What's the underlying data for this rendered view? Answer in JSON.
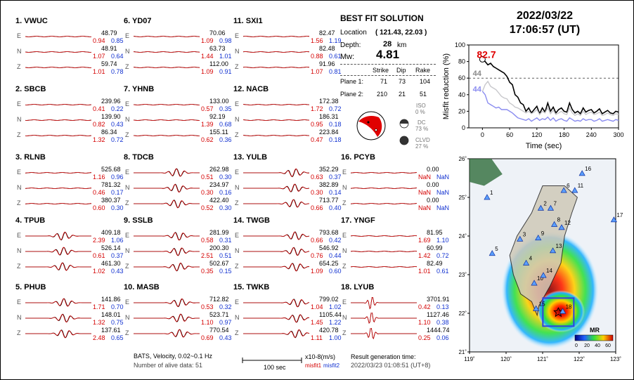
{
  "stations": [
    {
      "label": "1. VWUC",
      "col": 0,
      "row": 0,
      "type": "flat",
      "c": [
        [
          "E",
          "48.79",
          "0.94",
          "0.85"
        ],
        [
          "N",
          "48.91",
          "1.07",
          "0.64"
        ],
        [
          "Z",
          "59.74",
          "1.01",
          "0.78"
        ]
      ]
    },
    {
      "label": "2. SBCB",
      "col": 0,
      "row": 1,
      "type": "flat",
      "c": [
        [
          "E",
          "239.96",
          "0.41",
          "0.22"
        ],
        [
          "N",
          "139.90",
          "0.82",
          "0.43"
        ],
        [
          "Z",
          "86.34",
          "1.32",
          "0.72"
        ]
      ]
    },
    {
      "label": "3. RLNB",
      "col": 0,
      "row": 2,
      "type": "flat",
      "c": [
        [
          "E",
          "525.68",
          "1.16",
          "0.96"
        ],
        [
          "N",
          "781.32",
          "0.46",
          "0.17"
        ],
        [
          "Z",
          "380.37",
          "0.60",
          "0.30"
        ]
      ]
    },
    {
      "label": "4. TPUB",
      "col": 0,
      "row": 3,
      "type": "wave",
      "c": [
        [
          "E",
          "409.18",
          "2.39",
          "1.06"
        ],
        [
          "N",
          "526.14",
          "0.61",
          "0.37"
        ],
        [
          "Z",
          "461.30",
          "1.02",
          "0.43"
        ]
      ]
    },
    {
      "label": "5. PHUB",
      "col": 0,
      "row": 4,
      "type": "wave",
      "c": [
        [
          "E",
          "141.86",
          "1.71",
          "0.70"
        ],
        [
          "N",
          "148.01",
          "1.32",
          "0.75"
        ],
        [
          "Z",
          "137.61",
          "2.48",
          "0.65"
        ]
      ]
    },
    {
      "label": "6. YD07",
      "col": 1,
      "row": 0,
      "type": "flat",
      "c": [
        [
          "E",
          "70.06",
          "1.09",
          "0.98"
        ],
        [
          "N",
          "63.73",
          "1.44",
          "1.01"
        ],
        [
          "Z",
          "112.00",
          "1.09",
          "0.91"
        ]
      ]
    },
    {
      "label": "7. YHNB",
      "col": 1,
      "row": 1,
      "type": "flat",
      "c": [
        [
          "E",
          "133.00",
          "0.57",
          "0.35"
        ],
        [
          "N",
          "92.19",
          "1.39",
          "0.68"
        ],
        [
          "Z",
          "155.11",
          "0.62",
          "0.36"
        ]
      ]
    },
    {
      "label": "8. TDCB",
      "col": 1,
      "row": 2,
      "type": "wave",
      "c": [
        [
          "E",
          "262.98",
          "0.51",
          "0.30"
        ],
        [
          "N",
          "234.97",
          "0.30",
          "0.16"
        ],
        [
          "Z",
          "422.40",
          "0.52",
          "0.30"
        ]
      ]
    },
    {
      "label": "9. SSLB",
      "col": 1,
      "row": 3,
      "type": "wave",
      "c": [
        [
          "E",
          "281.99",
          "0.58",
          "0.31"
        ],
        [
          "N",
          "200.30",
          "2.51",
          "0.51"
        ],
        [
          "Z",
          "502.67",
          "0.35",
          "0.15"
        ]
      ]
    },
    {
      "label": "10. MASB",
      "col": 1,
      "row": 4,
      "type": "wave",
      "c": [
        [
          "E",
          "712.82",
          "0.53",
          "0.32"
        ],
        [
          "N",
          "523.71",
          "1.10",
          "0.97"
        ],
        [
          "Z",
          "770.54",
          "0.69",
          "0.43"
        ]
      ]
    },
    {
      "label": "11. SXI1",
      "col": 2,
      "row": 0,
      "type": "flat",
      "c": [
        [
          "E",
          "82.47",
          "1.56",
          "1.19"
        ],
        [
          "N",
          "82.48",
          "0.88",
          "0.61"
        ],
        [
          "Z",
          "91.96",
          "1.07",
          "0.81"
        ]
      ]
    },
    {
      "label": "12. NACB",
      "col": 2,
      "row": 1,
      "type": "flat",
      "c": [
        [
          "E",
          "172.38",
          "1.72",
          "0.72"
        ],
        [
          "N",
          "186.31",
          "0.95",
          "0.18"
        ],
        [
          "Z",
          "223.84",
          "0.47",
          "0.18"
        ]
      ]
    },
    {
      "label": "13. YULB",
      "col": 2,
      "row": 2,
      "type": "wave",
      "c": [
        [
          "E",
          "352.29",
          "0.63",
          "0.37"
        ],
        [
          "N",
          "382.89",
          "0.30",
          "0.14"
        ],
        [
          "Z",
          "713.77",
          "0.66",
          "0.40"
        ]
      ]
    },
    {
      "label": "14. TWGB",
      "col": 2,
      "row": 3,
      "type": "wave",
      "c": [
        [
          "E",
          "793.68",
          "0.66",
          "0.42"
        ],
        [
          "N",
          "546.92",
          "0.76",
          "0.44"
        ],
        [
          "Z",
          "654.25",
          "1.09",
          "0.60"
        ]
      ]
    },
    {
      "label": "15. TWKB",
      "col": 2,
      "row": 4,
      "type": "wave",
      "c": [
        [
          "E",
          "799.02",
          "1.04",
          "1.02"
        ],
        [
          "N",
          "1105.44",
          "1.45",
          "1.22"
        ],
        [
          "Z",
          "420.78",
          "1.11",
          "1.00"
        ]
      ]
    },
    {
      "label": "16. PCYB",
      "col": 3,
      "row": 2,
      "type": "flat",
      "c": [
        [
          "E",
          "0.00",
          "NaN",
          "NaN"
        ],
        [
          "N",
          "0.00",
          "NaN",
          "NaN"
        ],
        [
          "Z",
          "0.00",
          "NaN",
          "NaN"
        ]
      ]
    },
    {
      "label": "17. YNGF",
      "col": 3,
      "row": 3,
      "type": "flat",
      "c": [
        [
          "E",
          "81.95",
          "1.69",
          "1.10"
        ],
        [
          "N",
          "60.99",
          "1.42",
          "0.72"
        ],
        [
          "Z",
          "82.49",
          "1.01",
          "0.61"
        ]
      ]
    },
    {
      "label": "18. LYUB",
      "col": 3,
      "row": 4,
      "type": "spike",
      "c": [
        [
          "E",
          "3701.91",
          "0.42",
          "0.13"
        ],
        [
          "N",
          "1127.46",
          "1.10",
          "0.38"
        ],
        [
          "Z",
          "1444.74",
          "0.25",
          "0.06"
        ]
      ]
    }
  ],
  "solution": {
    "heading": "BEST FIT SOLUTION",
    "location_label": "Location",
    "location_value": "( 121.43, 22.03 )",
    "depth_label": "Depth:",
    "depth_value": "28",
    "depth_unit": "km",
    "mw_label": "Mw:",
    "mw_value": "4.81",
    "col_strike": "Strike",
    "col_dip": "Dip",
    "col_rake": "Rake",
    "plane1_label": "Plane 1:",
    "plane1": [
      "71",
      "73",
      "104"
    ],
    "plane2_label": "Plane 2:",
    "plane2": [
      "210",
      "21",
      "51"
    ],
    "iso_label": "ISO",
    "iso_value": "0 %",
    "dc_label": "DC",
    "dc_value": "73 %",
    "clvd_label": "CLVD",
    "clvd_value": "27 %"
  },
  "header": {
    "date": "2022/03/22",
    "time": "17:06:57  (UT)"
  },
  "footer": {
    "line1": "BATS, Velocity, 0.02~0.1 Hz",
    "line2": "Number of alive data: 51",
    "scale_label": "100 sec",
    "units": "x10-8(m/s)",
    "misfit1": "misfit1",
    "misfit2": "misfit2",
    "gen_label": "Result generation time:",
    "gen_value": "2022/03/23 01:08:51 (UT+8)"
  },
  "chart_data": [
    {
      "type": "line",
      "xlabel": "Time (sec)",
      "ylabel": "Misfit reduction (%)",
      "xlim": [
        -30,
        300
      ],
      "ylim": [
        0,
        100
      ],
      "xticks": [
        0,
        60,
        120,
        180,
        240,
        300
      ],
      "yticks": [
        0,
        20,
        40,
        60,
        80,
        100
      ],
      "reference_line": 60,
      "annotations": [
        {
          "text": "82.7",
          "x": 0,
          "y": 82.7
        },
        {
          "text": "44",
          "x": -15,
          "y": 66
        },
        {
          "text": "44",
          "x": -15,
          "y": 47
        }
      ],
      "series": [
        {
          "color": "#000000",
          "x": [
            0,
            6,
            12,
            18,
            24,
            30,
            36,
            42,
            48,
            54,
            60,
            66,
            72,
            78,
            84,
            90,
            96,
            102,
            108,
            114,
            120,
            126,
            132,
            138,
            144,
            150,
            156,
            162,
            168,
            174,
            180,
            186,
            192,
            198,
            204,
            210,
            216,
            222,
            228,
            234,
            240,
            246,
            252,
            258,
            264,
            270,
            276,
            282,
            288,
            294,
            300
          ],
          "y": [
            82.7,
            80,
            76,
            78,
            74,
            72,
            70,
            68,
            66,
            62,
            55,
            52,
            40,
            37,
            30,
            28,
            20,
            24,
            18,
            22,
            26,
            17,
            24,
            19,
            30,
            20,
            25,
            18,
            22,
            24,
            20,
            19,
            30,
            22,
            18,
            20,
            17,
            24,
            19,
            21,
            22,
            18,
            20,
            23,
            17,
            19,
            21,
            18,
            17,
            20,
            19
          ]
        },
        {
          "color": "#c8c8cc",
          "x": [
            0,
            6,
            12,
            18,
            24,
            30,
            36,
            42,
            48,
            54,
            60,
            66,
            72,
            78,
            84,
            90,
            96,
            102,
            108,
            114,
            120,
            126,
            132,
            138,
            144,
            150,
            156,
            162,
            168,
            174,
            180,
            186,
            192,
            198,
            204,
            210,
            216,
            222,
            228,
            234,
            240,
            246,
            252,
            258,
            264,
            270,
            276,
            282,
            288,
            294,
            300
          ],
          "y": [
            44,
            52,
            56,
            50,
            48,
            46,
            42,
            38,
            36,
            35,
            30,
            28,
            25,
            24,
            22,
            20,
            18,
            20,
            17,
            19,
            22,
            16,
            20,
            18,
            24,
            17,
            21,
            16,
            18,
            20,
            17,
            16,
            24,
            18,
            15,
            17,
            15,
            20,
            16,
            18,
            19,
            16,
            17,
            19,
            15,
            16,
            18,
            16,
            15,
            17,
            16
          ]
        },
        {
          "color": "#8a8cf0",
          "x": [
            0,
            6,
            12,
            18,
            24,
            30,
            36,
            42,
            48,
            54,
            60,
            66,
            72,
            78,
            84,
            90,
            96,
            102,
            108,
            114,
            120,
            126,
            132,
            138,
            144,
            150,
            156,
            162,
            168,
            174,
            180,
            186,
            192,
            198,
            204,
            210,
            216,
            222,
            228,
            234,
            240,
            246,
            252,
            258,
            264,
            270,
            276,
            282,
            288,
            294,
            300
          ],
          "y": [
            44,
            40,
            30,
            28,
            26,
            24,
            25,
            22,
            22,
            22,
            20,
            18,
            15,
            12,
            11,
            10,
            9,
            11,
            8,
            10,
            12,
            9,
            11,
            10,
            13,
            9,
            12,
            8,
            10,
            11,
            9,
            8,
            12,
            10,
            8,
            9,
            8,
            11,
            9,
            10,
            10,
            8,
            9,
            11,
            8,
            9,
            10,
            9,
            8,
            10,
            9
          ]
        }
      ]
    },
    {
      "type": "map",
      "xlim": [
        119,
        123
      ],
      "ylim": [
        21,
        26
      ],
      "xticklabels": [
        "119˚",
        "120˚",
        "121˚",
        "122˚",
        "123˚"
      ],
      "yticklabels": [
        "21˚",
        "22˚",
        "23˚",
        "24˚",
        "25˚",
        "26˚"
      ],
      "epicenter": [
        121.43,
        22.03
      ],
      "colorbar_label": "MR",
      "colorbar_ticks": [
        "0",
        "20",
        "40",
        "60"
      ],
      "stations": [
        {
          "id": "1",
          "lon": 119.48,
          "lat": 25.0
        },
        {
          "id": "2",
          "lon": 120.95,
          "lat": 24.72
        },
        {
          "id": "3",
          "lon": 120.38,
          "lat": 23.92
        },
        {
          "id": "4",
          "lon": 120.55,
          "lat": 23.3
        },
        {
          "id": "5",
          "lon": 119.62,
          "lat": 23.55
        },
        {
          "id": "6",
          "lon": 121.58,
          "lat": 25.18
        },
        {
          "id": "7",
          "lon": 121.22,
          "lat": 24.72
        },
        {
          "id": "8",
          "lon": 121.32,
          "lat": 24.3
        },
        {
          "id": "9",
          "lon": 120.88,
          "lat": 23.95
        },
        {
          "id": "10",
          "lon": 120.77,
          "lat": 22.78
        },
        {
          "id": "11",
          "lon": 121.88,
          "lat": 25.18
        },
        {
          "id": "12",
          "lon": 121.52,
          "lat": 24.22
        },
        {
          "id": "13",
          "lon": 121.28,
          "lat": 23.62
        },
        {
          "id": "14",
          "lon": 121.02,
          "lat": 22.98
        },
        {
          "id": "15",
          "lon": 120.82,
          "lat": 22.12
        },
        {
          "id": "16",
          "lon": 122.08,
          "lat": 25.62
        },
        {
          "id": "17",
          "lon": 122.95,
          "lat": 24.42
        },
        {
          "id": "18",
          "lon": 121.55,
          "lat": 22.05
        }
      ]
    }
  ]
}
